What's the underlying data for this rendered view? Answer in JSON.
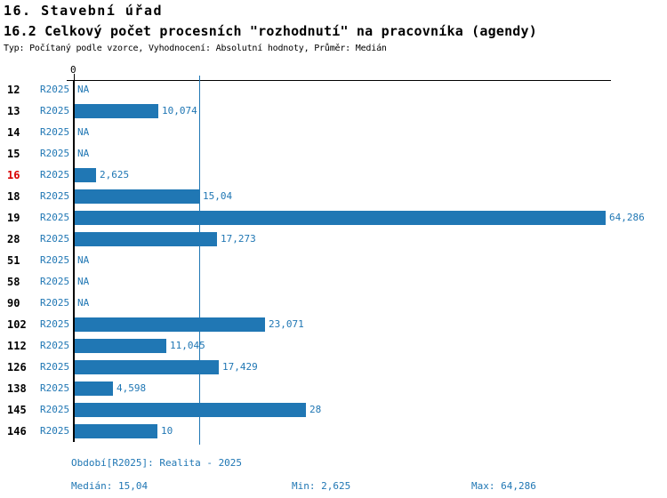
{
  "header": {
    "title": "16. Stavební úřad",
    "subtitle": "16.2 Celkový počet procesních \"rozhodnutí\" na pracovníka (agendy)",
    "meta": "Typ: Počítaný podle vzorce, Vyhodnocení: Absolutní hodnoty, Průměr: Medián"
  },
  "chart_data": {
    "type": "bar",
    "orientation": "horizontal",
    "title": "16.2 Celkový počet procesních \"rozhodnutí\" na pracovníka (agendy)",
    "axis": {
      "origin_label": "0",
      "xlim": [
        0,
        64.286
      ],
      "grid": false
    },
    "median_value": 15.04,
    "min_value": 2.625,
    "max_value": 64.286,
    "rows": [
      {
        "id": "12",
        "period": "R2025",
        "value": null,
        "value_label": "NA",
        "highlight": false
      },
      {
        "id": "13",
        "period": "R2025",
        "value": 10.074,
        "value_label": "10,074",
        "highlight": false
      },
      {
        "id": "14",
        "period": "R2025",
        "value": null,
        "value_label": "NA",
        "highlight": false
      },
      {
        "id": "15",
        "period": "R2025",
        "value": null,
        "value_label": "NA",
        "highlight": false
      },
      {
        "id": "16",
        "period": "R2025",
        "value": 2.625,
        "value_label": "2,625",
        "highlight": true
      },
      {
        "id": "18",
        "period": "R2025",
        "value": 15.04,
        "value_label": "15,04",
        "highlight": false
      },
      {
        "id": "19",
        "period": "R2025",
        "value": 64.286,
        "value_label": "64,286",
        "highlight": false
      },
      {
        "id": "28",
        "period": "R2025",
        "value": 17.273,
        "value_label": "17,273",
        "highlight": false
      },
      {
        "id": "51",
        "period": "R2025",
        "value": null,
        "value_label": "NA",
        "highlight": false
      },
      {
        "id": "58",
        "period": "R2025",
        "value": null,
        "value_label": "NA",
        "highlight": false
      },
      {
        "id": "90",
        "period": "R2025",
        "value": null,
        "value_label": "NA",
        "highlight": false
      },
      {
        "id": "102",
        "period": "R2025",
        "value": 23.071,
        "value_label": "23,071",
        "highlight": false
      },
      {
        "id": "112",
        "period": "R2025",
        "value": 11.045,
        "value_label": "11,045",
        "highlight": false
      },
      {
        "id": "126",
        "period": "R2025",
        "value": 17.429,
        "value_label": "17,429",
        "highlight": false
      },
      {
        "id": "138",
        "period": "R2025",
        "value": 4.598,
        "value_label": "4,598",
        "highlight": false
      },
      {
        "id": "145",
        "period": "R2025",
        "value": 28,
        "value_label": "28",
        "highlight": false
      },
      {
        "id": "146",
        "period": "R2025",
        "value": 10,
        "value_label": "10",
        "highlight": false
      }
    ],
    "colors": {
      "bar": "#2077b4",
      "median_line": "#2077b4",
      "text_blue": "#2077b4",
      "highlight_red": "#d90000",
      "axis": "#000000"
    }
  },
  "footer": {
    "period_line": "Období[R2025]: Realita - 2025",
    "median": "Medián: 15,04",
    "min": "Min: 2,625",
    "max": "Max: 64,286"
  }
}
